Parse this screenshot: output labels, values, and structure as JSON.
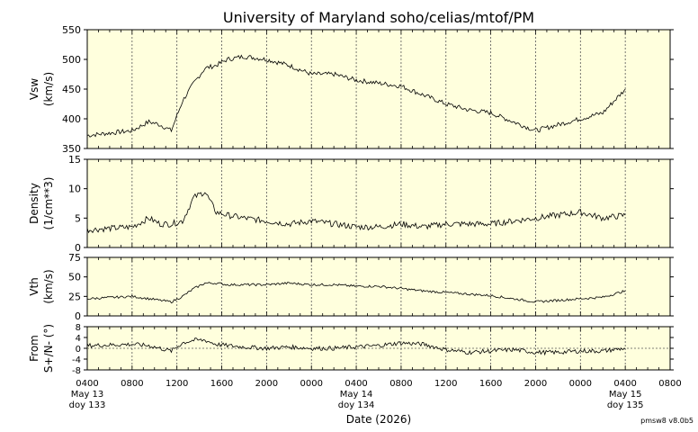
{
  "chart_data": {
    "type": "line",
    "title": "University of Maryland  soho/celias/mtof/PM",
    "xlabel": "Date (2026)",
    "version": "pmsw8 v8.0b5",
    "background_color": "#ffffdd",
    "line_color": "#000000",
    "grid": "dotted vertical every 4 hours",
    "x_ticks": [
      "0400",
      "0800",
      "1200",
      "1600",
      "2000",
      "0000",
      "0400",
      "0800",
      "1200",
      "1600",
      "2000",
      "0000",
      "0400",
      "0800"
    ],
    "day_labels": [
      {
        "date": "May 13",
        "doy": "doy 133"
      },
      {
        "date": "May 14",
        "doy": "doy 134"
      },
      {
        "date": "May 15",
        "doy": "doy 135"
      }
    ],
    "x": [
      "May13 04:00",
      "May13 08:00",
      "May13 09:30",
      "May13 10:30",
      "May13 11:30",
      "May13 12:30",
      "May13 13:30",
      "May13 14:30",
      "May13 15:30",
      "May13 16:30",
      "May13 18:00",
      "May13 20:00",
      "May13 22:00",
      "May14 00:00",
      "May14 02:00",
      "May14 04:00",
      "May14 06:00",
      "May14 08:00",
      "May14 10:00",
      "May14 12:00",
      "May14 14:00",
      "May14 16:00",
      "May14 18:00",
      "May14 20:00",
      "May14 22:00",
      "May15 00:00",
      "May15 02:00",
      "May15 04:00"
    ],
    "panels": [
      {
        "ylabel": "Vsw",
        "unit": "(km/s)",
        "ylim": [
          350,
          550
        ],
        "yticks": [
          350,
          400,
          450,
          500,
          550
        ],
        "values": [
          372,
          380,
          395,
          390,
          380,
          430,
          460,
          485,
          490,
          500,
          505,
          500,
          490,
          475,
          475,
          465,
          460,
          455,
          440,
          425,
          415,
          410,
          395,
          380,
          390,
          400,
          410,
          450
        ]
      },
      {
        "ylabel": "Density",
        "unit": "(1/cm**3)",
        "ylim": [
          0,
          15
        ],
        "yticks": [
          0,
          5,
          10,
          15
        ],
        "values": [
          3.0,
          3.5,
          5.0,
          4.0,
          4.0,
          4.5,
          8.5,
          9.5,
          6.0,
          5.5,
          5.0,
          4.5,
          4.0,
          4.5,
          4.0,
          3.5,
          3.5,
          4.0,
          3.5,
          4.0,
          4.0,
          4.0,
          4.5,
          5.0,
          5.5,
          6.0,
          5.0,
          5.5
        ]
      },
      {
        "ylabel": "Vth",
        "unit": "(km/s)",
        "ylim": [
          0,
          75
        ],
        "yticks": [
          0,
          25,
          50,
          75
        ],
        "values": [
          22,
          25,
          22,
          20,
          18,
          25,
          35,
          42,
          42,
          40,
          40,
          40,
          42,
          40,
          40,
          38,
          38,
          35,
          32,
          30,
          28,
          26,
          22,
          18,
          20,
          22,
          24,
          32
        ]
      },
      {
        "ylabel": "From",
        "unit": "S+/N- (°)",
        "ylim": [
          -8,
          8
        ],
        "yticks": [
          -8,
          -4,
          0,
          4,
          8
        ],
        "values": [
          1,
          1.5,
          1,
          0,
          -1,
          2,
          3,
          3,
          1.5,
          1,
          0.5,
          0,
          0.5,
          0,
          0,
          0.5,
          1,
          2,
          1.5,
          -0.5,
          -1.5,
          -1,
          -0.5,
          -1.5,
          -1.5,
          -1,
          -1,
          0
        ]
      }
    ]
  }
}
